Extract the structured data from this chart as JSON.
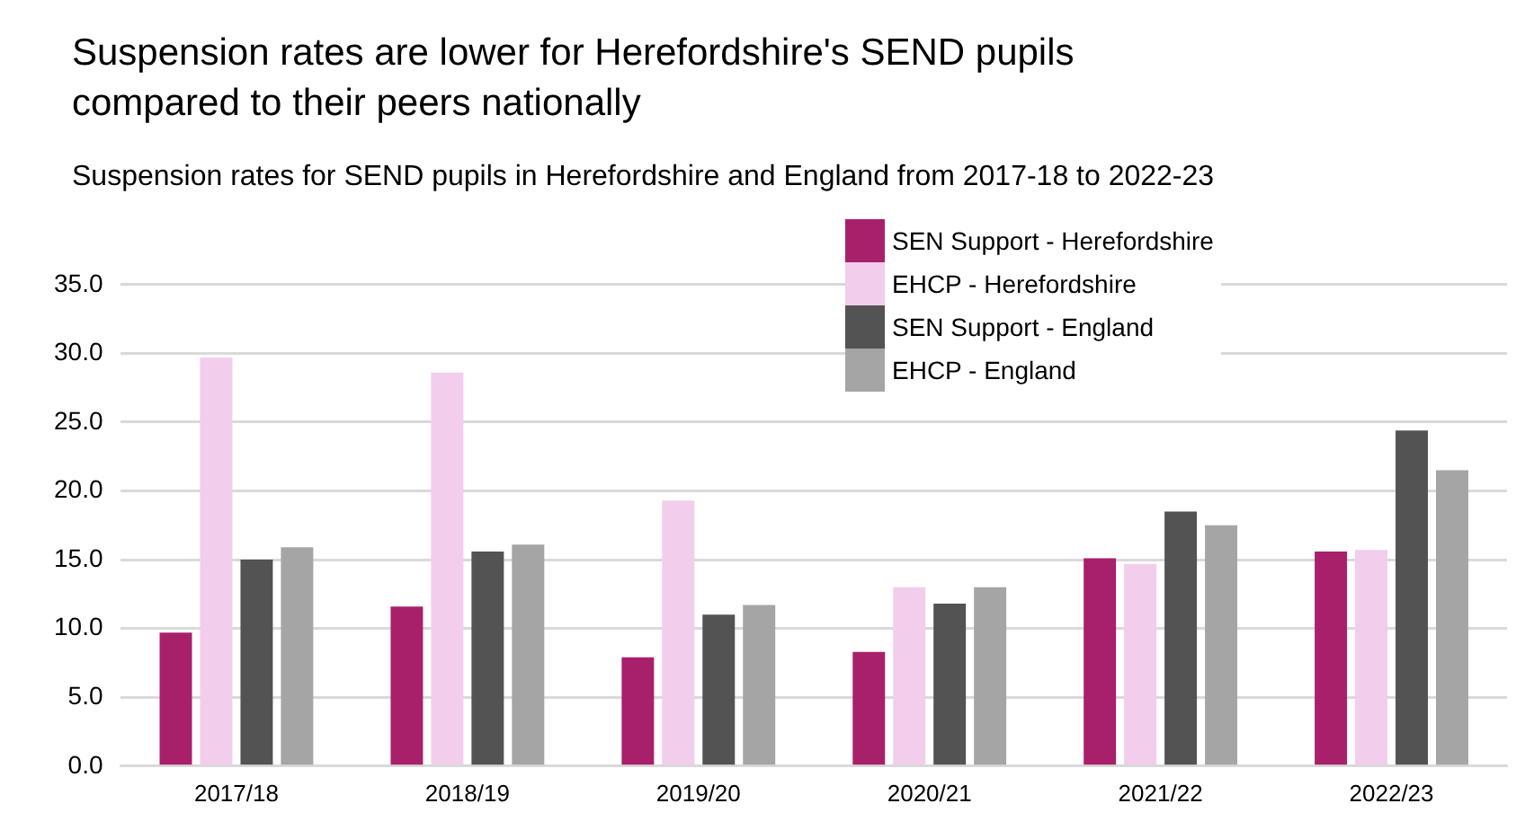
{
  "chart_data": {
    "type": "bar",
    "title": "Suspension rates are lower for Herefordshire's SEND pupils compared to their peers nationally",
    "subtitle": "Suspension rates for SEND pupils in Herefordshire and England from 2017-18 to 2022-23",
    "categories": [
      "2017/18",
      "2018/19",
      "2019/20",
      "2020/21",
      "2021/22",
      "2022/23"
    ],
    "series": [
      {
        "name": "SEN Support - Herefordshire",
        "color": "#a8206a",
        "values": [
          9.7,
          11.6,
          7.9,
          8.3,
          15.1,
          15.6
        ]
      },
      {
        "name": "EHCP - Herefordshire",
        "color": "#f2cdec",
        "values": [
          29.7,
          28.6,
          19.3,
          13.0,
          14.7,
          15.7
        ]
      },
      {
        "name": "SEN Support - England",
        "color": "#535353",
        "values": [
          15.0,
          15.6,
          11.0,
          11.8,
          18.5,
          24.4
        ]
      },
      {
        "name": "EHCP - England",
        "color": "#a5a5a5",
        "values": [
          15.9,
          16.1,
          11.7,
          13.0,
          17.5,
          21.5
        ]
      }
    ],
    "ylim": [
      0,
      35
    ],
    "yticks": [
      {
        "value": 0,
        "label": "0.0"
      },
      {
        "value": 5,
        "label": "5.0"
      },
      {
        "value": 10,
        "label": "10.0"
      },
      {
        "value": 15,
        "label": "15.0"
      },
      {
        "value": 20,
        "label": "20.0"
      },
      {
        "value": 25,
        "label": "25.0"
      },
      {
        "value": 30,
        "label": "30.0"
      },
      {
        "value": 35,
        "label": "35.0"
      }
    ],
    "grid": "y",
    "legend": "top right"
  }
}
